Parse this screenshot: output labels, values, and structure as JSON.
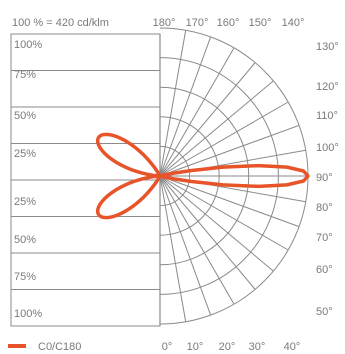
{
  "chart_data": {
    "type": "polar",
    "title": "100 % = 420 cd/klm",
    "radial_labels_left": [
      "100%",
      "75%",
      "50%",
      "25%",
      "25%",
      "50%",
      "75%",
      "100%"
    ],
    "angle_labels_top": [
      "180°",
      "170°",
      "160°",
      "150°",
      "140°"
    ],
    "angle_labels_right": [
      "130°",
      "120°",
      "110°",
      "100°",
      "90°",
      "80°",
      "70°",
      "60°",
      "50°"
    ],
    "angle_labels_bottom": [
      "0°",
      "10°",
      "20°",
      "30°",
      "40°"
    ],
    "grid": true,
    "legend": {
      "position": "bottom-left",
      "entries": [
        "C0/C180"
      ]
    },
    "series_color": "#e8542a",
    "series": [
      {
        "name": "C0/C180",
        "angle_deg": [
          90,
          92,
          94,
          96,
          98,
          100,
          102,
          104,
          106
        ],
        "intensity_pct": [
          100,
          97,
          86,
          67,
          43,
          21,
          9,
          4,
          2
        ],
        "side_lobes": [
          {
            "side": "C180",
            "peak_angle_deg": 122,
            "peak_pct": 49,
            "width_deg": 13
          },
          {
            "side": "C180",
            "peak_angle_deg": 58,
            "peak_pct": 49,
            "width_deg": 13
          }
        ]
      }
    ]
  }
}
